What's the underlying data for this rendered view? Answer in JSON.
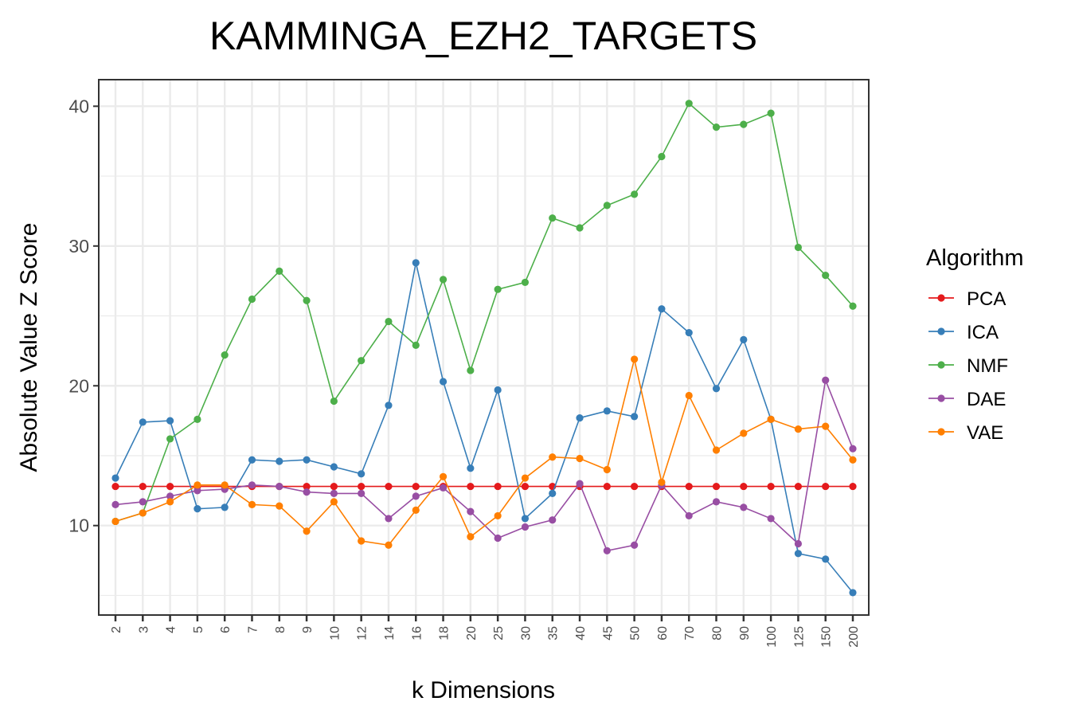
{
  "chart_data": {
    "type": "line",
    "title": "KAMMINGA_EZH2_TARGETS",
    "xlabel": "k Dimensions",
    "ylabel": "Absolute Value Z Score",
    "x": [
      "2",
      "3",
      "4",
      "5",
      "6",
      "7",
      "8",
      "9",
      "10",
      "12",
      "14",
      "16",
      "18",
      "20",
      "25",
      "30",
      "35",
      "40",
      "45",
      "50",
      "60",
      "70",
      "80",
      "90",
      "100",
      "125",
      "150",
      "200"
    ],
    "ylim": [
      3.6,
      41.9
    ],
    "yticks": [
      10,
      20,
      30,
      40
    ],
    "grid": true,
    "legend": {
      "title": "Algorithm",
      "position": "right"
    },
    "series": [
      {
        "name": "PCA",
        "color": "#E41A1C",
        "values": [
          12.8,
          12.8,
          12.8,
          12.8,
          12.8,
          12.8,
          12.8,
          12.8,
          12.8,
          12.8,
          12.8,
          12.8,
          12.8,
          12.8,
          12.8,
          12.8,
          12.8,
          12.8,
          12.8,
          12.8,
          12.8,
          12.8,
          12.8,
          12.8,
          12.8,
          12.8,
          12.8,
          12.8
        ]
      },
      {
        "name": "ICA",
        "color": "#377EB8",
        "values": [
          13.4,
          17.4,
          17.5,
          11.2,
          11.3,
          14.7,
          14.6,
          14.7,
          14.2,
          13.7,
          18.6,
          28.8,
          20.3,
          14.1,
          19.7,
          10.5,
          12.3,
          17.7,
          18.2,
          17.8,
          25.5,
          23.8,
          19.8,
          23.3,
          17.6,
          8.0,
          7.6,
          5.2
        ]
      },
      {
        "name": "NMF",
        "color": "#4DAF4A",
        "values": [
          10.3,
          10.9,
          16.2,
          17.6,
          22.2,
          26.2,
          28.2,
          26.1,
          18.9,
          21.8,
          24.6,
          22.9,
          27.6,
          21.1,
          26.9,
          27.4,
          32.0,
          31.3,
          32.9,
          33.7,
          36.4,
          40.2,
          38.5,
          38.7,
          39.5,
          29.9,
          27.9,
          25.7
        ]
      },
      {
        "name": "DAE",
        "color": "#984EA3",
        "values": [
          11.5,
          11.7,
          12.1,
          12.5,
          12.6,
          12.9,
          12.8,
          12.4,
          12.3,
          12.3,
          10.5,
          12.1,
          12.7,
          11.0,
          9.1,
          9.9,
          10.4,
          13.0,
          8.2,
          8.6,
          12.9,
          10.7,
          11.7,
          11.3,
          10.5,
          8.7,
          20.4,
          15.5
        ]
      },
      {
        "name": "VAE",
        "color": "#FF7F00",
        "values": [
          10.3,
          10.9,
          11.7,
          12.9,
          12.9,
          11.5,
          11.4,
          9.6,
          11.7,
          8.9,
          8.6,
          11.1,
          13.5,
          9.2,
          10.7,
          13.4,
          14.9,
          14.8,
          14.0,
          21.9,
          13.1,
          19.3,
          15.4,
          16.6,
          17.6,
          16.9,
          17.1,
          14.7
        ]
      }
    ]
  }
}
